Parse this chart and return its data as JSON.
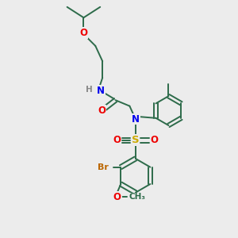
{
  "bg_color": "#ececec",
  "bond_color": "#2d6b4a",
  "bond_width": 1.4,
  "atom_colors": {
    "N": "#0000ee",
    "O": "#ee0000",
    "S": "#ccaa00",
    "Br": "#bb6600",
    "H": "#888888",
    "C": "#2d6b4a"
  },
  "font_size": 8.5
}
